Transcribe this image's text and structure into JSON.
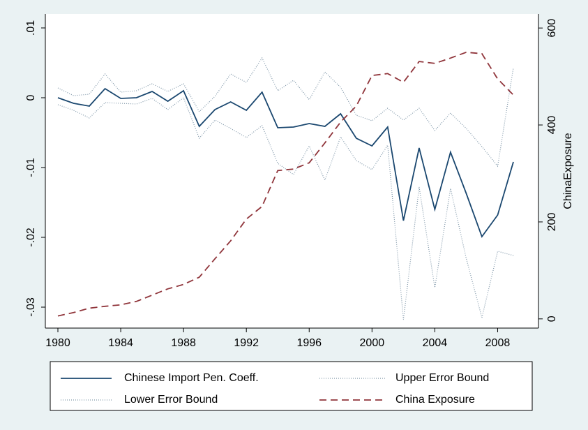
{
  "chart_data": {
    "type": "line",
    "x": [
      1980,
      1981,
      1982,
      1983,
      1984,
      1985,
      1986,
      1987,
      1988,
      1989,
      1990,
      1991,
      1992,
      1993,
      1994,
      1995,
      1996,
      1997,
      1998,
      1999,
      2000,
      2001,
      2002,
      2003,
      2004,
      2005,
      2006,
      2007,
      2008,
      2009
    ],
    "xlim": [
      1979.2,
      2010.6
    ],
    "xticks": [
      1980,
      1984,
      1988,
      1992,
      1996,
      2000,
      2004,
      2008
    ],
    "ylim": [
      -0.033,
      0.012
    ],
    "yticks": [
      {
        "value": 0.01,
        "label": ".01"
      },
      0,
      {
        "value": -0.01,
        "label": "-.01"
      },
      {
        "value": -0.02,
        "label": "-.02"
      },
      {
        "value": -0.03,
        "label": "-.03"
      }
    ],
    "y2lim": [
      -19,
      629
    ],
    "y2ticks": [
      0,
      200,
      400,
      600
    ],
    "y2label": "ChinaExposure",
    "series": [
      {
        "name": "Chinese Import Pen. Coeff.",
        "color": "#1a476f",
        "dash": "solid",
        "values": [
          0,
          -0.0008,
          -0.0012,
          0.0013,
          -0.0001,
          0,
          0.0009,
          -0.0005,
          0.001,
          -0.0041,
          -0.0017,
          -0.0006,
          -0.0018,
          0.0008,
          -0.0043,
          -0.0042,
          -0.0037,
          -0.0041,
          -0.0023,
          -0.0058,
          -0.0069,
          -0.0042,
          -0.0176,
          -0.0072,
          -0.016,
          -0.0078,
          -0.0137,
          -0.0199,
          -0.0168,
          -0.0092
        ]
      },
      {
        "name": "Upper Error Bound",
        "color": "#7f96a8",
        "dash": "dotted",
        "values": [
          0.0014,
          0.0003,
          0.0005,
          0.0034,
          0.0008,
          0.001,
          0.002,
          0.0009,
          0.002,
          -0.002,
          0.0002,
          0.0034,
          0.0022,
          0.0057,
          0.001,
          0.0025,
          -0.0003,
          0.0037,
          0.0015,
          -0.0025,
          -0.0033,
          -0.0015,
          -0.0032,
          -0.0015,
          -0.0047,
          -0.0022,
          -0.0044,
          -0.007,
          -0.0098,
          0.0043
        ]
      },
      {
        "name": "Lower Error Bound",
        "color": "#7f96a8",
        "dash": "dotted",
        "values": [
          -0.001,
          -0.0018,
          -0.0029,
          -0.0007,
          -0.0008,
          -0.0009,
          -0.0001,
          -0.0017,
          0,
          -0.0058,
          -0.0032,
          -0.0044,
          -0.0057,
          -0.004,
          -0.0094,
          -0.011,
          -0.0069,
          -0.0118,
          -0.0056,
          -0.009,
          -0.0103,
          -0.0068,
          -0.0318,
          -0.0128,
          -0.0272,
          -0.013,
          -0.023,
          -0.0315,
          -0.022,
          -0.0226
        ]
      },
      {
        "name": "China Exposure",
        "color": "#90353b",
        "dash": "dashed",
        "axis": "y2",
        "values": [
          6,
          13,
          22,
          26,
          29,
          36,
          49,
          62,
          71,
          86,
          124,
          161,
          206,
          232,
          306,
          309,
          322,
          363,
          406,
          439,
          502,
          506,
          488,
          531,
          527,
          538,
          550,
          547,
          495,
          462
        ]
      }
    ]
  }
}
